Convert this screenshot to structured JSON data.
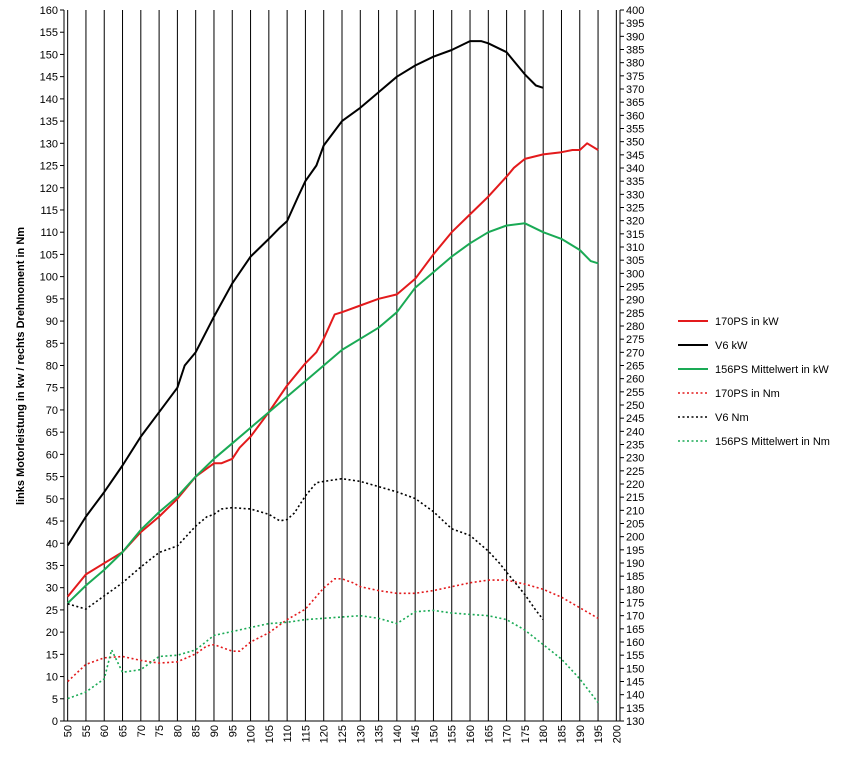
{
  "chart_data": {
    "type": "line",
    "xlabel": "",
    "ylabel": "links Motorleistung in kw / rechts Drehmoment in Nm",
    "x_ticks": [
      50,
      55,
      60,
      65,
      70,
      75,
      80,
      85,
      90,
      95,
      100,
      105,
      110,
      115,
      120,
      125,
      130,
      135,
      140,
      145,
      150,
      155,
      160,
      165,
      170,
      175,
      180,
      185,
      190,
      195,
      200
    ],
    "y_left_ticks": [
      0,
      5,
      10,
      15,
      20,
      25,
      30,
      35,
      40,
      45,
      50,
      55,
      60,
      65,
      70,
      75,
      80,
      85,
      90,
      95,
      100,
      105,
      110,
      115,
      120,
      125,
      130,
      135,
      140,
      145,
      150,
      155,
      160
    ],
    "y_right_ticks": [
      130,
      135,
      140,
      145,
      150,
      155,
      160,
      165,
      170,
      175,
      180,
      185,
      190,
      195,
      200,
      205,
      210,
      215,
      220,
      225,
      230,
      235,
      240,
      245,
      250,
      255,
      260,
      265,
      270,
      275,
      280,
      285,
      290,
      295,
      300,
      305,
      310,
      315,
      320,
      325,
      330,
      335,
      340,
      345,
      350,
      355,
      360,
      365,
      370,
      375,
      380,
      385,
      390,
      395,
      400
    ],
    "xlim": [
      49,
      201
    ],
    "ylim_left": [
      0,
      160
    ],
    "ylim_right": [
      130,
      400
    ],
    "grid": "vertical",
    "legend_position": "right",
    "series": [
      {
        "name": "170PS in kW",
        "color": "#e31a1c",
        "dash": "solid",
        "axis": "left",
        "x": [
          50,
          55,
          60,
          65,
          70,
          75,
          80,
          85,
          90,
          92,
          95,
          97,
          100,
          105,
          110,
          115,
          118,
          120,
          123,
          125,
          130,
          135,
          140,
          145,
          150,
          155,
          160,
          165,
          170,
          172,
          175,
          180,
          185,
          188,
          190,
          192,
          195
        ],
        "y": [
          28,
          33,
          35.5,
          38,
          42.5,
          46,
          50,
          55,
          58,
          58,
          59,
          61.5,
          64,
          69.5,
          75.5,
          80.5,
          83,
          86,
          91.5,
          92,
          93.5,
          95,
          96,
          99.5,
          105,
          110,
          114,
          118,
          122.5,
          124.5,
          126.5,
          127.5,
          128,
          128.5,
          128.5,
          130,
          128.5
        ]
      },
      {
        "name": "V6 kW",
        "color": "#000000",
        "dash": "solid",
        "axis": "left",
        "x": [
          50,
          55,
          60,
          65,
          70,
          75,
          80,
          82,
          85,
          90,
          95,
          100,
          105,
          108,
          110,
          113,
          115,
          118,
          120,
          125,
          130,
          135,
          140,
          145,
          150,
          155,
          160,
          163,
          165,
          170,
          172,
          175,
          178,
          180
        ],
        "y": [
          39.5,
          46,
          51.5,
          57.5,
          64,
          69.5,
          75,
          80,
          83,
          91,
          98.5,
          104.5,
          108.5,
          111,
          112.5,
          118,
          121.5,
          125,
          129.5,
          135,
          138,
          141.5,
          145,
          147.5,
          149.5,
          151,
          153,
          153,
          152.5,
          150.5,
          148.5,
          145.5,
          143,
          142.5
        ]
      },
      {
        "name": "156PS Mittelwert in kW",
        "color": "#1aaa55",
        "dash": "solid",
        "axis": "left",
        "x": [
          50,
          55,
          60,
          65,
          70,
          75,
          80,
          85,
          90,
          95,
          100,
          105,
          110,
          115,
          120,
          125,
          130,
          135,
          140,
          145,
          150,
          155,
          160,
          165,
          170,
          175,
          180,
          185,
          190,
          193,
          195
        ],
        "y": [
          26.5,
          30.5,
          34,
          38,
          43,
          47,
          50.5,
          55,
          59,
          62.5,
          66,
          69.5,
          73,
          76.5,
          80,
          83.5,
          86,
          88.5,
          92,
          97.5,
          101,
          104.5,
          107.5,
          110,
          111.5,
          112,
          110,
          108.5,
          106,
          103.5,
          103
        ]
      },
      {
        "name": "170PS in Nm",
        "color": "#e31a1c",
        "dash": "dotted",
        "axis": "right",
        "x": [
          50,
          55,
          60,
          65,
          70,
          75,
          80,
          85,
          88,
          90,
          92,
          95,
          97,
          100,
          105,
          110,
          115,
          120,
          123,
          125,
          128,
          130,
          135,
          140,
          145,
          150,
          155,
          160,
          165,
          170,
          175,
          180,
          185,
          190,
          195
        ],
        "y": [
          145,
          151.5,
          154,
          154.5,
          153,
          152,
          152.5,
          155.5,
          158.5,
          159,
          158,
          156.5,
          156.5,
          160,
          163.5,
          168.5,
          172.5,
          180.5,
          184,
          184,
          182.5,
          181,
          179.5,
          178.5,
          178.5,
          179.5,
          181,
          182.5,
          183.5,
          183.5,
          182,
          180,
          177,
          173,
          169
        ]
      },
      {
        "name": "V6 Nm",
        "color": "#000000",
        "dash": "dotted",
        "axis": "right",
        "x": [
          50,
          55,
          60,
          65,
          70,
          75,
          80,
          85,
          88,
          90,
          92,
          95,
          100,
          105,
          108,
          110,
          112,
          115,
          118,
          120,
          125,
          130,
          135,
          140,
          145,
          150,
          155,
          160,
          165,
          168,
          170,
          175,
          178,
          180
        ],
        "y": [
          174.5,
          172.5,
          177.5,
          182.5,
          188.5,
          194,
          196.5,
          204,
          207.5,
          208.5,
          210.5,
          211,
          210.5,
          208.5,
          206,
          206.5,
          209,
          215.5,
          220.5,
          221,
          222,
          221,
          219,
          217,
          214.5,
          209.5,
          203,
          200.5,
          194.5,
          190,
          186.5,
          178,
          172,
          168.5
        ]
      },
      {
        "name": "156PS Mittelwert in Nm",
        "color": "#1aaa55",
        "dash": "dotted",
        "axis": "right",
        "x": [
          50,
          55,
          58,
          60,
          62,
          65,
          70,
          75,
          80,
          85,
          90,
          95,
          100,
          105,
          110,
          115,
          120,
          125,
          130,
          135,
          140,
          145,
          150,
          155,
          160,
          165,
          170,
          175,
          180,
          185,
          190,
          195
        ],
        "y": [
          138.5,
          141,
          144,
          146,
          157,
          148.5,
          149.5,
          154.5,
          155,
          157,
          162.5,
          164,
          165.5,
          167,
          167.5,
          168.5,
          169,
          169.5,
          170,
          169,
          167,
          171.5,
          172,
          171,
          170.5,
          170,
          168.5,
          164.5,
          159,
          153.5,
          146,
          137
        ]
      }
    ]
  }
}
